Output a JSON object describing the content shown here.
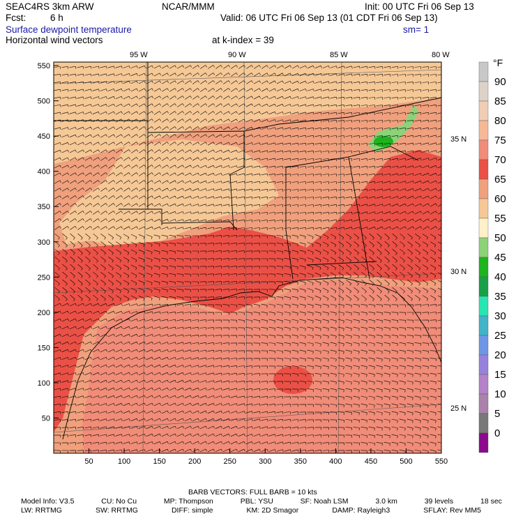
{
  "header": {
    "model": "SEAC4RS 3km ARW",
    "org": "NCAR/MMM",
    "init": "Init: 00 UTC Fri 06 Sep 13",
    "fcst_label": "Fcst:",
    "fcst_value": "6 h",
    "valid": "Valid: 06 UTC Fri 06 Sep 13 (01 CDT Fri 06 Sep 13)",
    "field1": "Surface dewpoint temperature",
    "sm": "sm= 1",
    "field2": "Horizontal wind vectors",
    "kindex": "at k-index =  39"
  },
  "axes": {
    "lon_labels": [
      "95 W",
      "90 W",
      "85 W",
      "80 W"
    ],
    "lat_labels": [
      "35 N",
      "30 N",
      "25 N"
    ],
    "x_ticks": [
      "50",
      "100",
      "150",
      "200",
      "250",
      "300",
      "350",
      "400",
      "450",
      "500",
      "550"
    ],
    "y_ticks": [
      "550",
      "500",
      "450",
      "400",
      "350",
      "300",
      "250",
      "200",
      "150",
      "100",
      "50"
    ]
  },
  "legend": {
    "unit": "°F",
    "levels": [
      "90",
      "85",
      "80",
      "75",
      "70",
      "65",
      "60",
      "55",
      "50",
      "45",
      "40",
      "35",
      "30",
      "25",
      "20",
      "15",
      "10",
      "5",
      "0"
    ],
    "colors": {
      "95": "#c8c8c8",
      "90": "#dcd2c8",
      "85": "#f0cdb4",
      "80": "#f5b996",
      "75": "#f08c78",
      "70": "#eb5046",
      "65": "#f0a07d",
      "60": "#f5c896",
      "55": "#fff0c8",
      "50": "#8cd278",
      "45": "#1eb41e",
      "40": "#18a048",
      "35": "#28e6b4",
      "30": "#40b4c8",
      "25": "#6e96e6",
      "20": "#9682dc",
      "15": "#b482c8",
      "10": "#aa82aa",
      "5": "#787878",
      "0": "#8c0a8c"
    }
  },
  "footer": {
    "barb": "BARB VECTORS:  FULL BARB = 10 kts",
    "line1": [
      "Model Info: V3.5",
      "CU: No Cu",
      "MP: Thompson",
      "PBL: YSU",
      "SF: Noah LSM",
      "3.0 km",
      "39 levels",
      "18 sec"
    ],
    "line2": [
      "LW: RRTMG",
      "SW: RRTMG",
      "DIFF: simple",
      "KM: 2D Smagor",
      "DAMP: Rayleigh3",
      "SFLAY: Rev MM5"
    ]
  }
}
